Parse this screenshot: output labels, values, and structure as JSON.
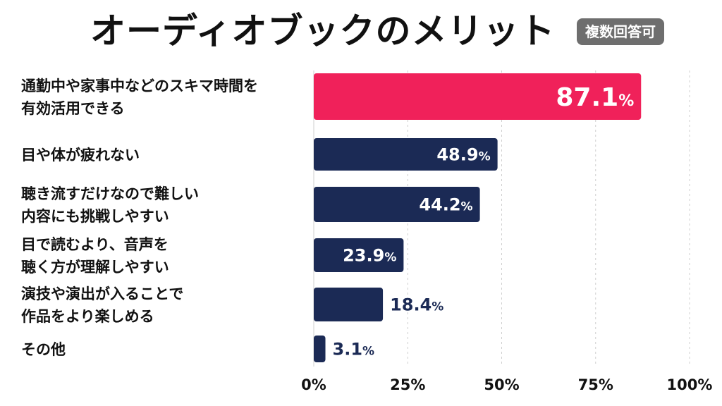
{
  "title": "オーディオブックのメリット",
  "badge": "複数回答可",
  "colors": {
    "highlight": "#f0215a",
    "bar": "#1b2a55",
    "badge": "#6e6e6e"
  },
  "chart_data": {
    "type": "bar",
    "orientation": "horizontal",
    "title": "オーディオブックのメリット",
    "categories": [
      [
        "通勤中や家事中などのスキマ時間を",
        "有効活用できる"
      ],
      [
        "目や体が疲れない"
      ],
      [
        "聴き流すだけなので難しい",
        "内容にも挑戦しやすい"
      ],
      [
        "目で読むより、音声を",
        "聴く方が理解しやすい"
      ],
      [
        "演技や演出が入ることで",
        "作品をより楽しめる"
      ],
      [
        "その他"
      ]
    ],
    "values": [
      87.1,
      48.9,
      44.2,
      23.9,
      18.4,
      3.1
    ],
    "value_labels": [
      "87.1",
      "48.9",
      "44.2",
      "23.9",
      "18.4",
      "3.1"
    ],
    "unit": "%",
    "highlight_index": 0,
    "xlim": [
      0,
      100
    ],
    "xticks": [
      "0%",
      "25%",
      "50%",
      "75%",
      "100%"
    ],
    "xtick_values": [
      0,
      25,
      50,
      75,
      100
    ],
    "grid": true
  }
}
